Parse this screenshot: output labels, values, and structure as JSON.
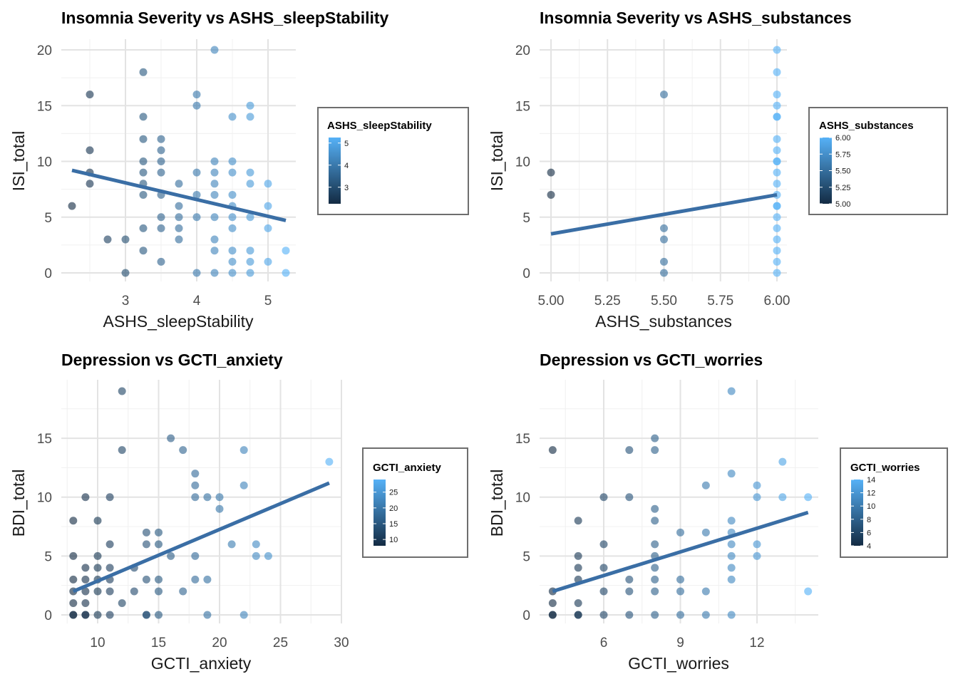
{
  "chart_data": [
    {
      "type": "scatter",
      "title": "Insomnia Severity vs ASHS_sleepStability",
      "xlabel": "ASHS_sleepStability",
      "ylabel": "ISI_total",
      "xlim": [
        2.2,
        5.3
      ],
      "ylim": [
        0,
        20
      ],
      "xticks": [
        3,
        4,
        5
      ],
      "xtick_labels": [
        "3",
        "4",
        "5"
      ],
      "yticks": [
        0,
        5,
        10,
        15,
        20
      ],
      "ytick_labels": [
        "0",
        "5",
        "10",
        "15",
        "20"
      ],
      "grid": true,
      "legend": {
        "title": "ASHS_sleepStability",
        "position": "right",
        "min": 2.25,
        "max": 5.25,
        "ticks": [
          3,
          4,
          5
        ],
        "tick_labels": [
          "3",
          "4",
          "5"
        ]
      },
      "trend": {
        "x": [
          2.25,
          5.25
        ],
        "y": [
          9.2,
          4.7
        ]
      },
      "x": [
        2.25,
        2.5,
        2.5,
        2.5,
        2.5,
        2.75,
        3.0,
        3.0,
        3.25,
        3.25,
        3.25,
        3.25,
        3.25,
        3.25,
        3.25,
        3.25,
        3.25,
        3.5,
        3.5,
        3.5,
        3.5,
        3.5,
        3.5,
        3.5,
        3.5,
        3.75,
        3.75,
        3.75,
        3.75,
        3.75,
        4.0,
        4.0,
        4.0,
        4.0,
        4.0,
        4.0,
        4.25,
        4.25,
        4.25,
        4.25,
        4.25,
        4.25,
        4.25,
        4.25,
        4.25,
        4.5,
        4.5,
        4.5,
        4.5,
        4.5,
        4.5,
        4.5,
        4.5,
        4.5,
        4.5,
        4.75,
        4.75,
        4.75,
        4.75,
        4.75,
        4.75,
        4.75,
        4.75,
        5.0,
        5.0,
        5.0,
        5.0,
        5.25,
        5.25
      ],
      "y": [
        6,
        16,
        11,
        9,
        8,
        3,
        3,
        0,
        18,
        14,
        12,
        10,
        9,
        8,
        7,
        4,
        2,
        12,
        11,
        10,
        9,
        7,
        5,
        4,
        1,
        8,
        6,
        5,
        4,
        3,
        16,
        15,
        9,
        7,
        5,
        0,
        20,
        10,
        9,
        8,
        7,
        5,
        3,
        2,
        0,
        14,
        10,
        9,
        7,
        6,
        5,
        4,
        2,
        1,
        0,
        15,
        14,
        9,
        8,
        5,
        2,
        1,
        0,
        8,
        6,
        4,
        1,
        2,
        0
      ]
    },
    {
      "type": "scatter",
      "title": "Insomnia Severity vs ASHS_substances",
      "xlabel": "ASHS_substances",
      "ylabel": "ISI_total",
      "xlim": [
        4.95,
        6.05
      ],
      "ylim": [
        0,
        20
      ],
      "xticks": [
        5.0,
        5.25,
        5.5,
        5.75,
        6.0
      ],
      "xtick_labels": [
        "5.00",
        "5.25",
        "5.50",
        "5.75",
        "6.00"
      ],
      "yticks": [
        0,
        5,
        10,
        15,
        20
      ],
      "ytick_labels": [
        "0",
        "5",
        "10",
        "15",
        "20"
      ],
      "grid": true,
      "legend": {
        "title": "ASHS_substances",
        "position": "right",
        "min": 5.0,
        "max": 6.0,
        "ticks": [
          5.0,
          5.25,
          5.5,
          5.75,
          6.0
        ],
        "tick_labels": [
          "5.00",
          "5.25",
          "5.50",
          "5.75",
          "6.00"
        ]
      },
      "trend": {
        "x": [
          5.0,
          6.0
        ],
        "y": [
          3.5,
          7.0
        ]
      },
      "x": [
        5.0,
        5.0,
        5.5,
        5.5,
        5.5,
        5.5,
        5.5,
        6.0,
        6.0,
        6.0,
        6.0,
        6.0,
        6.0,
        6.0,
        6.0,
        6.0,
        6.0,
        6.0,
        6.0,
        6.0,
        6.0,
        6.0,
        6.0,
        6.0,
        6.0,
        6.0,
        6.0,
        6.0
      ],
      "y": [
        9,
        7,
        16,
        4,
        3,
        1,
        0,
        20,
        18,
        16,
        15,
        14,
        12,
        11,
        10,
        9,
        8,
        7,
        6,
        5,
        4,
        3,
        2,
        1,
        0,
        14,
        10,
        6
      ]
    },
    {
      "type": "scatter",
      "title": "Depression vs GCTI_anxiety",
      "xlabel": "GCTI_anxiety",
      "ylabel": "BDI_total",
      "xlim": [
        7.5,
        30.1
      ],
      "ylim": [
        0,
        19
      ],
      "xticks": [
        10,
        15,
        20,
        25,
        30
      ],
      "xtick_labels": [
        "10",
        "15",
        "20",
        "25",
        "30"
      ],
      "yticks": [
        0,
        5,
        10,
        15
      ],
      "ytick_labels": [
        "0",
        "5",
        "10",
        "15"
      ],
      "grid": true,
      "legend": {
        "title": "GCTI_anxiety",
        "position": "right",
        "min": 8,
        "max": 29,
        "ticks": [
          10,
          15,
          20,
          25
        ],
        "tick_labels": [
          "10",
          "15",
          "20",
          "25"
        ]
      },
      "trend": {
        "x": [
          8,
          29
        ],
        "y": [
          2.0,
          11.2
        ]
      },
      "x": [
        8,
        8,
        8,
        8,
        8,
        8,
        8,
        9,
        9,
        9,
        9,
        9,
        9,
        9,
        10,
        10,
        10,
        10,
        10,
        10,
        11,
        11,
        11,
        11,
        11,
        11,
        12,
        12,
        12,
        13,
        13,
        14,
        14,
        14,
        14,
        14,
        15,
        15,
        15,
        15,
        15,
        16,
        16,
        17,
        17,
        18,
        18,
        18,
        18,
        18,
        19,
        19,
        19,
        20,
        20,
        21,
        22,
        22,
        22,
        23,
        23,
        24,
        29
      ],
      "y": [
        8,
        5,
        3,
        2,
        1,
        0,
        0,
        10,
        4,
        3,
        2,
        1,
        0,
        0,
        8,
        5,
        4,
        3,
        2,
        0,
        10,
        6,
        4,
        3,
        2,
        0,
        19,
        14,
        1,
        4,
        2,
        7,
        6,
        3,
        0,
        0,
        7,
        6,
        3,
        2,
        0,
        15,
        5,
        14,
        2,
        12,
        11,
        10,
        5,
        3,
        10,
        3,
        0,
        10,
        9,
        6,
        14,
        11,
        0,
        6,
        5,
        5,
        13
      ]
    },
    {
      "type": "scatter",
      "title": "Depression vs GCTI_worries",
      "xlabel": "GCTI_worries",
      "ylabel": "BDI_total",
      "xlim": [
        3.8,
        14.5
      ],
      "ylim": [
        0,
        19
      ],
      "xticks": [
        6,
        9,
        12
      ],
      "xtick_labels": [
        "6",
        "9",
        "12"
      ],
      "yticks": [
        0,
        5,
        10,
        15
      ],
      "ytick_labels": [
        "0",
        "5",
        "10",
        "15"
      ],
      "grid": true,
      "legend": {
        "title": "GCTI_worries",
        "position": "right",
        "min": 4,
        "max": 14,
        "ticks": [
          4,
          6,
          8,
          10,
          12,
          14
        ],
        "tick_labels": [
          "4",
          "6",
          "8",
          "10",
          "12",
          "14"
        ]
      },
      "trend": {
        "x": [
          4,
          14
        ],
        "y": [
          2.0,
          8.7
        ]
      },
      "x": [
        4,
        4,
        4,
        4,
        4,
        5,
        5,
        5,
        5,
        5,
        5,
        5,
        6,
        6,
        6,
        6,
        6,
        7,
        7,
        7,
        7,
        7,
        8,
        8,
        8,
        8,
        8,
        8,
        8,
        8,
        8,
        8,
        9,
        9,
        9,
        9,
        10,
        10,
        10,
        10,
        11,
        11,
        11,
        11,
        11,
        11,
        11,
        11,
        11,
        12,
        12,
        12,
        12,
        13,
        13,
        14,
        14
      ],
      "y": [
        14,
        2,
        1,
        0,
        0,
        8,
        5,
        4,
        3,
        1,
        0,
        0,
        10,
        6,
        4,
        2,
        0,
        14,
        10,
        3,
        2,
        0,
        15,
        14,
        9,
        8,
        6,
        5,
        4,
        3,
        2,
        0,
        7,
        3,
        2,
        0,
        11,
        7,
        2,
        0,
        19,
        12,
        8,
        7,
        6,
        5,
        4,
        3,
        0,
        11,
        10,
        6,
        5,
        13,
        10,
        10,
        2
      ]
    }
  ]
}
